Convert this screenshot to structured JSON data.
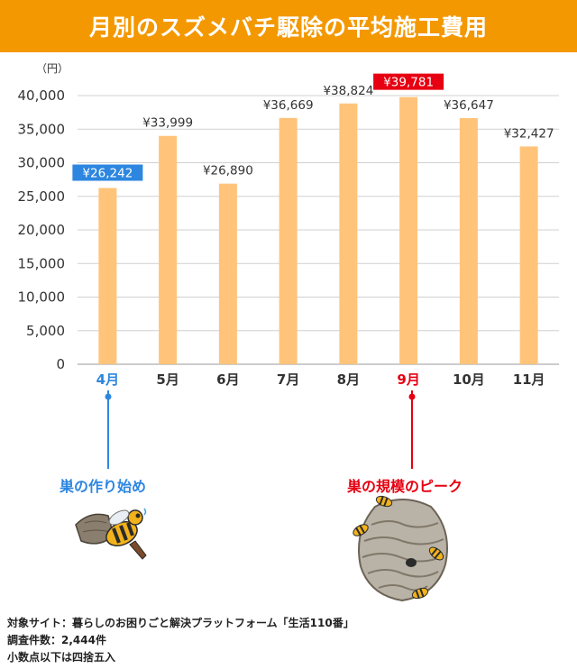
{
  "title": "月別のスズメバチ駆除の平均施工費用",
  "chart_data": {
    "type": "bar",
    "title": "月別のスズメバチ駆除の平均施工費用",
    "unit_label": "（円）",
    "categories": [
      "4月",
      "5月",
      "6月",
      "7月",
      "8月",
      "9月",
      "10月",
      "11月"
    ],
    "values": [
      26242,
      33999,
      26890,
      36669,
      38824,
      39781,
      36647,
      32427
    ],
    "value_labels": [
      "¥26,242",
      "¥33,999",
      "¥26,890",
      "¥36,669",
      "¥38,824",
      "¥39,781",
      "¥36,647",
      "¥32,427"
    ],
    "yticks": [
      0,
      5000,
      10000,
      15000,
      20000,
      25000,
      30000,
      35000,
      40000
    ],
    "ytick_labels": [
      "0",
      "5,000",
      "10,000",
      "15,000",
      "20,000",
      "25,000",
      "30,000",
      "35,000",
      "40,000"
    ],
    "ylim": [
      0,
      40000
    ],
    "grid": true,
    "highlight_low_index": 0,
    "highlight_high_index": 5
  },
  "colors": {
    "banner": "#f39800",
    "bar": "#ffc47a",
    "grid": "#d0d0d0",
    "low": "#2d86e0",
    "high": "#e60012",
    "text": "#333333"
  },
  "callouts": {
    "low": "巣の作り始め",
    "high": "巣の規模のピーク"
  },
  "illustrations": {
    "early_nest": "wasp-on-small-nest-icon",
    "peak_nest": "large-hornet-nest-icon"
  },
  "footer": {
    "line1": "対象サイト：暮らしのお困りごと解決プラットフォーム「生活110番」",
    "line2": "調査件数：2,444件",
    "line3": "小数点以下は四捨五入"
  }
}
